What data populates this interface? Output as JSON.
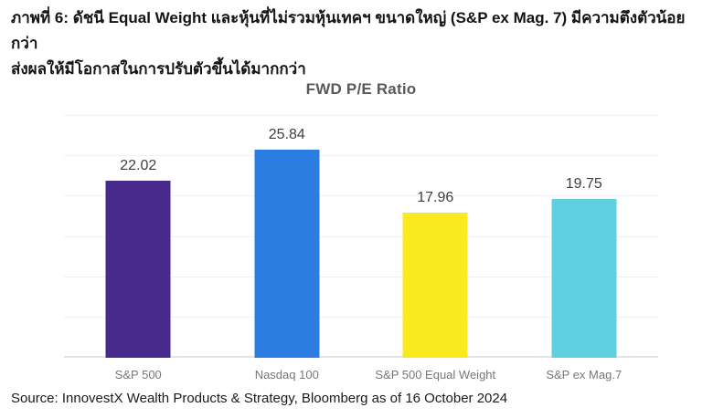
{
  "heading": {
    "line1": "ภาพที่ 6: ดัชนี Equal Weight และหุ้นที่ไม่รวมหุ้นเทคฯ ขนาดใหญ่ (S&P ex Mag. 7) มีความตึงตัวน้อยกว่า",
    "line2": "ส่งผลให้มีโอกาสในการปรับตัวขึ้นได้มากกว่า"
  },
  "chart_data": {
    "type": "bar",
    "title": "FWD P/E Ratio",
    "categories": [
      "S&P 500",
      "Nasdaq 100",
      "S&P 500 Equal Weight",
      "S&P ex Mag.7"
    ],
    "values": [
      22.02,
      25.84,
      17.96,
      19.75
    ],
    "value_labels": [
      "22.02",
      "25.84",
      "17.96",
      "19.75"
    ],
    "bar_colors": [
      "#482A8C",
      "#2B7DE1",
      "#FAE91E",
      "#5FD0DF"
    ],
    "ylim": [
      0,
      30
    ],
    "grid_step": 5,
    "grid": "horizontal-light",
    "legend": "none",
    "xlabel": "",
    "ylabel": ""
  },
  "source": "Source: InnovestX Wealth Products & Strategy, Bloomberg as of 16 October 2024",
  "colors": {
    "background": "#ffffff",
    "heading_text": "#141414",
    "chart_title_text": "#595959",
    "value_label_text": "#3f3f3f",
    "axis_label_text": "#76777a",
    "gridline": "#f1f1f3",
    "baseline": "#e4e4e7"
  }
}
